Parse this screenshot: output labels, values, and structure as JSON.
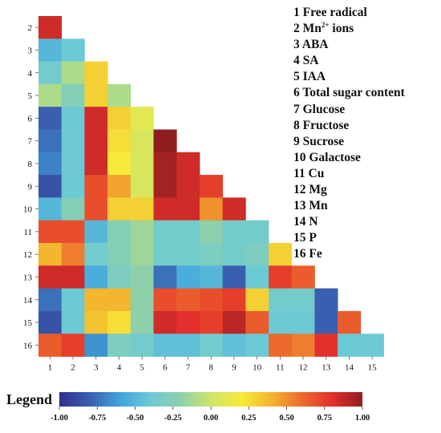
{
  "chart_data": {
    "type": "heatmap",
    "title": "",
    "row_labels": [
      "2",
      "3",
      "4",
      "5",
      "6",
      "7",
      "8",
      "9",
      "10",
      "11",
      "12",
      "13",
      "14",
      "15",
      "16"
    ],
    "col_labels": [
      "1",
      "2",
      "3",
      "4",
      "5",
      "6",
      "7",
      "8",
      "9",
      "10",
      "11",
      "12",
      "13",
      "14",
      "15"
    ],
    "values": [
      [
        0.85
      ],
      [
        -0.5,
        -0.4
      ],
      [
        -0.35,
        -0.1,
        0.3
      ],
      [
        -0.1,
        -0.25,
        0.3,
        -0.1
      ],
      [
        -0.8,
        -0.4,
        0.85,
        0.3,
        0.1
      ],
      [
        -0.75,
        -0.4,
        0.85,
        0.25,
        0.05,
        1.0
      ],
      [
        -0.7,
        -0.4,
        0.85,
        0.2,
        0.05,
        0.95,
        0.85
      ],
      [
        -0.85,
        -0.4,
        0.7,
        0.45,
        0.05,
        0.95,
        0.85,
        0.75
      ],
      [
        -0.5,
        -0.25,
        0.7,
        0.3,
        0.3,
        0.85,
        0.85,
        0.5,
        0.85
      ],
      [
        0.7,
        0.7,
        -0.5,
        -0.25,
        -0.15,
        -0.35,
        -0.35,
        -0.2,
        -0.35,
        -0.35
      ],
      [
        0.4,
        0.55,
        -0.35,
        -0.25,
        -0.15,
        -0.35,
        -0.35,
        -0.3,
        -0.35,
        -0.3,
        0.3
      ],
      [
        0.85,
        0.85,
        -0.55,
        -0.3,
        -0.2,
        -0.75,
        -0.55,
        -0.5,
        -0.8,
        -0.4,
        0.75,
        0.65
      ],
      [
        -0.75,
        -0.4,
        0.4,
        0.4,
        -0.2,
        0.7,
        0.65,
        0.7,
        0.75,
        0.3,
        -0.35,
        -0.35,
        -0.8
      ],
      [
        -0.85,
        -0.4,
        0.35,
        0.25,
        -0.2,
        0.85,
        0.8,
        0.75,
        0.9,
        0.65,
        -0.4,
        -0.4,
        -0.8,
        0.65
      ],
      [
        0.65,
        0.75,
        -0.65,
        -0.3,
        -0.35,
        -0.45,
        -0.45,
        -0.35,
        -0.45,
        -0.4,
        0.6,
        0.55,
        0.8,
        -0.4,
        -0.4
      ]
    ],
    "variables": [
      {
        "label": "1 Free radical"
      },
      {
        "label": "2 Mn",
        "sup": "2+",
        "suffix": " ions"
      },
      {
        "label": "3 ABA"
      },
      {
        "label": "4 SA"
      },
      {
        "label": "5 IAA"
      },
      {
        "label": "6 Total sugar content"
      },
      {
        "label": "7 Glucose"
      },
      {
        "label": "8 Fructose"
      },
      {
        "label": "9 Sucrose"
      },
      {
        "label": "10 Galactose"
      },
      {
        "label": "11 Cu"
      },
      {
        "label": "12 Mg"
      },
      {
        "label": "13 Mn"
      },
      {
        "label": "14 N"
      },
      {
        "label": "15 P"
      },
      {
        "label": "16 Fe"
      }
    ],
    "colorbar": {
      "title": "Legend",
      "range": [
        -1.0,
        1.0
      ],
      "ticks": [
        "-1.00",
        "-0.75",
        "-0.50",
        "-0.25",
        "0.00",
        "0.25",
        "0.50",
        "0.75",
        "1.00"
      ],
      "colors": [
        "#2e2f8e",
        "#3a5fb0",
        "#3fa4dc",
        "#6cc9d6",
        "#8dd0ab",
        "#cde56a",
        "#f7ea3a",
        "#f3b62e",
        "#ec6b2c",
        "#e3302c",
        "#8e1d1f"
      ]
    }
  }
}
